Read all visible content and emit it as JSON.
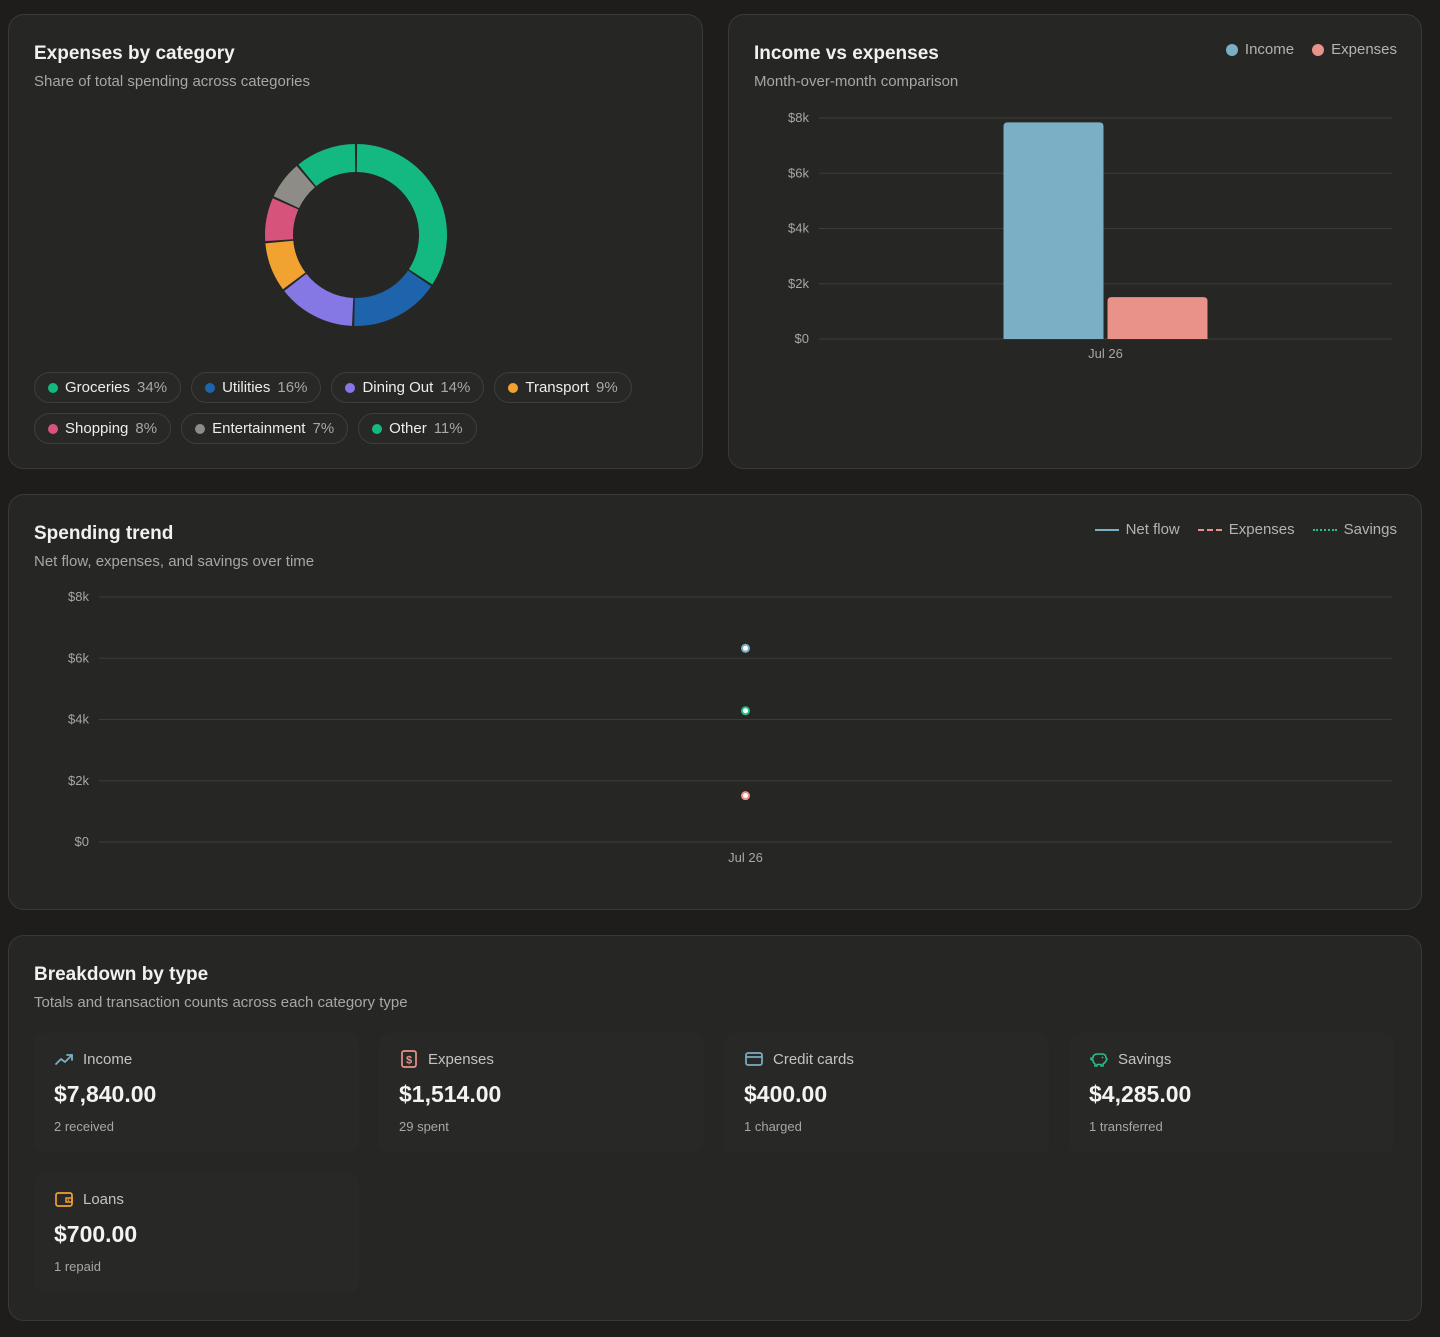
{
  "expenses_card": {
    "title": "Expenses by category",
    "subtitle": "Share of total spending across categories"
  },
  "income_card": {
    "title": "Income vs expenses",
    "subtitle": "Month-over-month comparison",
    "legend": [
      {
        "label": "Income",
        "color": "#7aafc5"
      },
      {
        "label": "Expenses",
        "color": "#e8928a"
      }
    ]
  },
  "trend_card": {
    "title": "Spending trend",
    "subtitle": "Net flow, expenses, and savings over time",
    "legend": [
      {
        "label": "Net flow",
        "color": "#7aafc5",
        "style": "solid"
      },
      {
        "label": "Expenses",
        "color": "#e8928a",
        "style": "dashed"
      },
      {
        "label": "Savings",
        "color": "#22c08a",
        "style": "dotted"
      }
    ]
  },
  "breakdown_card": {
    "title": "Breakdown by type",
    "subtitle": "Totals and transaction counts across each category type",
    "tiles": [
      {
        "label": "Income",
        "amount": "$7,840.00",
        "count": "2 received",
        "icon": "trending-up-icon",
        "color": "#7aafc5"
      },
      {
        "label": "Expenses",
        "amount": "$1,514.00",
        "count": "29 spent",
        "icon": "receipt-dollar-icon",
        "color": "#e8928a"
      },
      {
        "label": "Credit cards",
        "amount": "$400.00",
        "count": "1 charged",
        "icon": "credit-card-icon",
        "color": "#7aafc5"
      },
      {
        "label": "Savings",
        "amount": "$4,285.00",
        "count": "1 transferred",
        "icon": "piggy-bank-icon",
        "color": "#22c08a"
      },
      {
        "label": "Loans",
        "amount": "$700.00",
        "count": "1 repaid",
        "icon": "wallet-icon",
        "color": "#f0a030"
      }
    ]
  },
  "chart_data": [
    {
      "type": "pie",
      "donut": true,
      "slices": [
        {
          "label": "Groceries",
          "value": 34,
          "pct_label": "34%",
          "color": "#14b981"
        },
        {
          "label": "Utilities",
          "value": 16,
          "pct_label": "16%",
          "color": "#1e64ad"
        },
        {
          "label": "Dining Out",
          "value": 14,
          "pct_label": "14%",
          "color": "#8577e4"
        },
        {
          "label": "Transport",
          "value": 9,
          "pct_label": "9%",
          "color": "#f2a230"
        },
        {
          "label": "Shopping",
          "value": 8,
          "pct_label": "8%",
          "color": "#d6547c"
        },
        {
          "label": "Entertainment",
          "value": 7,
          "pct_label": "7%",
          "color": "#8e8c87"
        },
        {
          "label": "Other",
          "value": 11,
          "pct_label": "11%",
          "color": "#14b981"
        }
      ]
    },
    {
      "type": "bar",
      "categories": [
        "Jul 26"
      ],
      "series": [
        {
          "name": "Income",
          "values": [
            7840
          ],
          "color": "#7aafc5"
        },
        {
          "name": "Expenses",
          "values": [
            1514
          ],
          "color": "#e8928a"
        }
      ],
      "ylim": [
        0,
        8000
      ],
      "yticks": [
        0,
        2000,
        4000,
        6000,
        8000
      ],
      "ytick_labels": [
        "$0",
        "$2k",
        "$4k",
        "$6k",
        "$8k"
      ],
      "grid": true
    },
    {
      "type": "line",
      "categories": [
        "Jul 26"
      ],
      "series": [
        {
          "name": "Net flow",
          "values": [
            6326
          ],
          "color": "#7aafc5"
        },
        {
          "name": "Expenses",
          "values": [
            1514
          ],
          "color": "#e8928a"
        },
        {
          "name": "Savings",
          "values": [
            4285
          ],
          "color": "#22c08a"
        }
      ],
      "ylim": [
        0,
        8000
      ],
      "yticks": [
        0,
        2000,
        4000,
        6000,
        8000
      ],
      "ytick_labels": [
        "$0",
        "$2k",
        "$4k",
        "$6k",
        "$8k"
      ],
      "grid": true
    }
  ]
}
